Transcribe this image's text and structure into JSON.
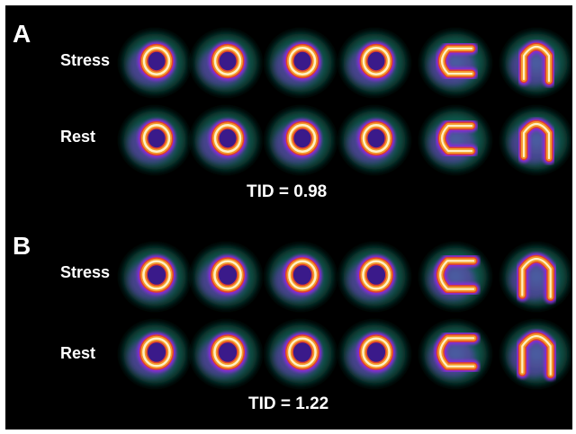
{
  "colors": {
    "background": "#000000",
    "text": "#ffffff",
    "halo": "#1a8f7a",
    "halo_dark": "#0b4a40",
    "mid": "#8a2bd8",
    "ring_outer": "#e0402c",
    "ring_mid": "#f39a2a",
    "ring_core": "#fff1c4",
    "cavity": "#3a1a8a"
  },
  "panels": [
    {
      "letter": "A",
      "tid_text": "TID = 0.98",
      "rows": [
        {
          "label": "Stress",
          "slices": [
            "short-axis",
            "short-axis",
            "short-axis",
            "short-axis",
            "horizontal-long-axis",
            "vertical-long-axis"
          ]
        },
        {
          "label": "Rest",
          "slices": [
            "short-axis",
            "short-axis",
            "short-axis",
            "short-axis",
            "horizontal-long-axis",
            "vertical-long-axis"
          ]
        }
      ]
    },
    {
      "letter": "B",
      "tid_text": "TID = 1.22",
      "rows": [
        {
          "label": "Stress",
          "slices": [
            "short-axis",
            "short-axis",
            "short-axis",
            "short-axis",
            "horizontal-long-axis",
            "vertical-long-axis"
          ]
        },
        {
          "label": "Rest",
          "slices": [
            "short-axis",
            "short-axis",
            "short-axis",
            "short-axis",
            "horizontal-long-axis",
            "vertical-long-axis"
          ]
        }
      ]
    }
  ]
}
